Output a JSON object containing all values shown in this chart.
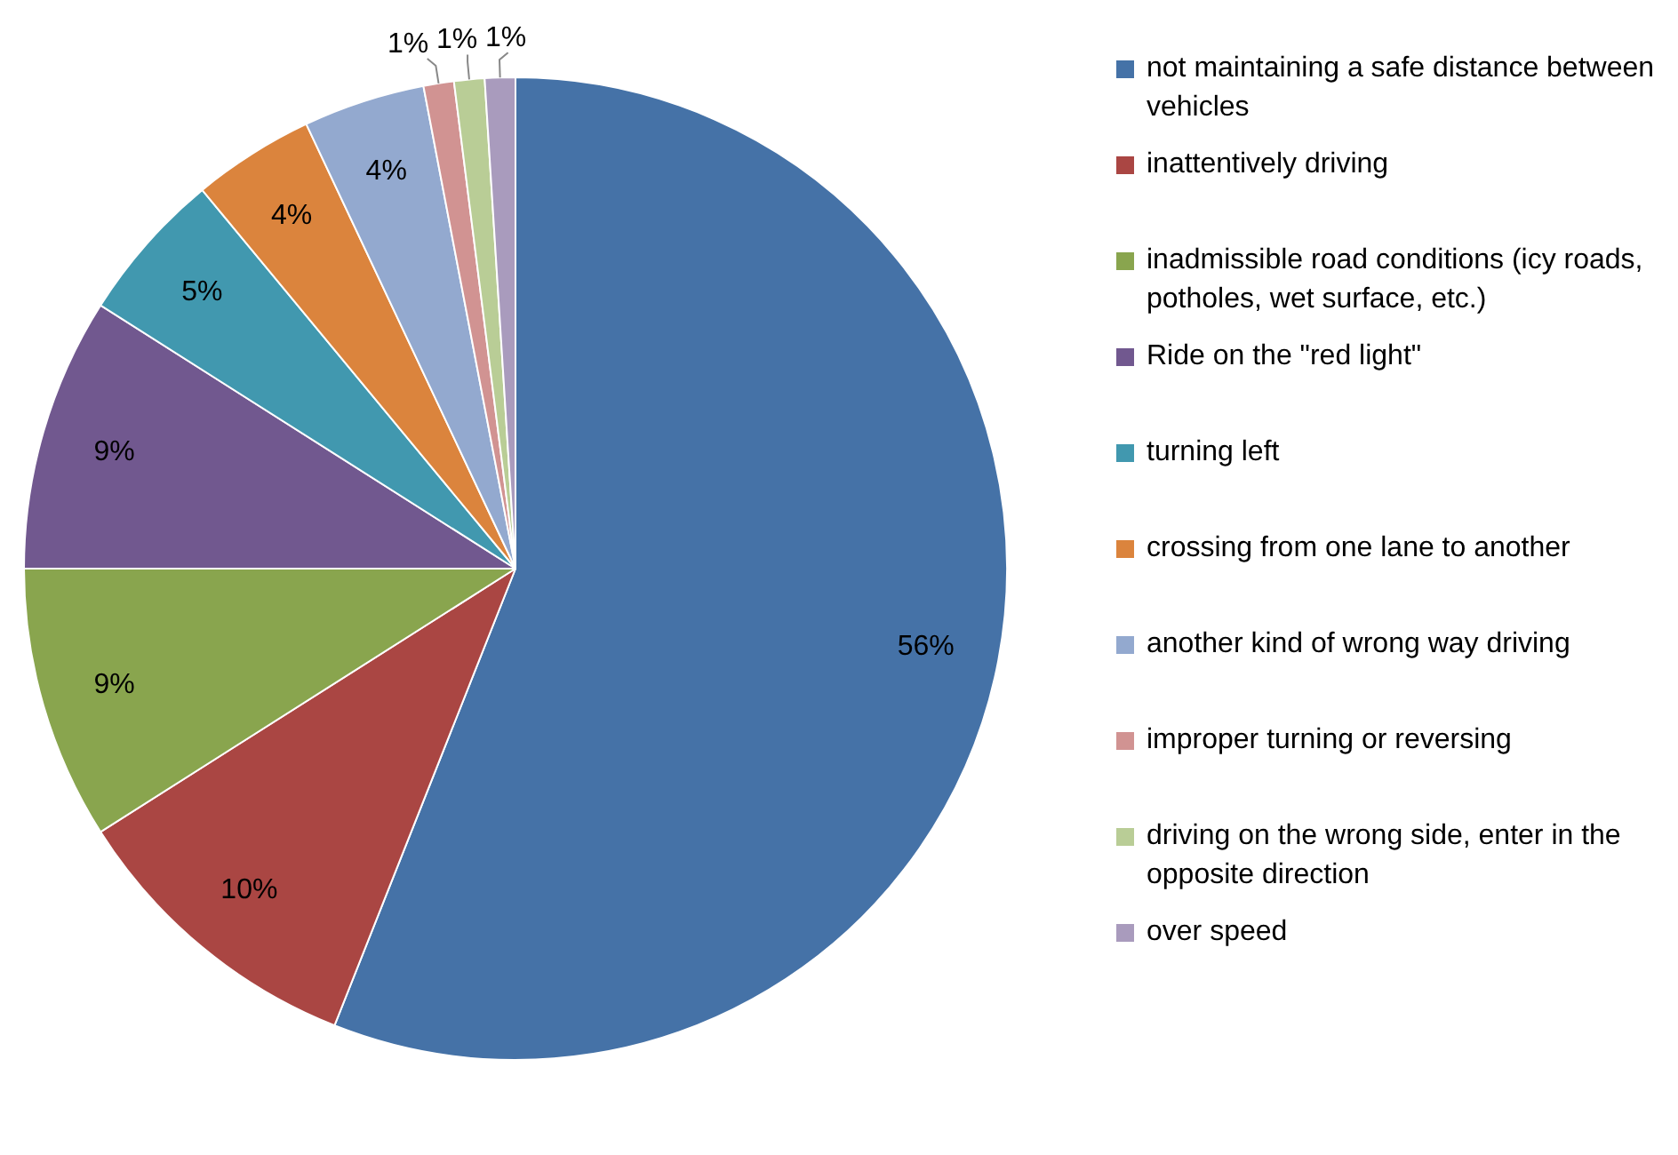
{
  "chart_data": {
    "type": "pie",
    "categories": [
      "not maintaining a safe distance between vehicles",
      "inattentively driving",
      "inadmissible road conditions (icy roads, potholes, wet surface, etc.)",
      "Ride on the \"red light\"",
      " turning left",
      "crossing from one lane to another",
      "another kind of wrong way driving",
      "improper turning or reversing",
      "driving on the wrong side, enter in the opposite direction",
      "over speed"
    ],
    "values": [
      56,
      10,
      9,
      9,
      5,
      4,
      4,
      1,
      1,
      1
    ],
    "value_labels": [
      "56%",
      "10%",
      "9%",
      "9%",
      "5%",
      "4%",
      "4%",
      "1%",
      "1%",
      "1%"
    ],
    "colors": [
      "#4572a7",
      "#aa4643",
      "#89a54e",
      "#71588f",
      "#4198af",
      "#db843d",
      "#93a9cf",
      "#d19392",
      "#b9cd96",
      "#a99bbd"
    ],
    "legend": "right"
  }
}
